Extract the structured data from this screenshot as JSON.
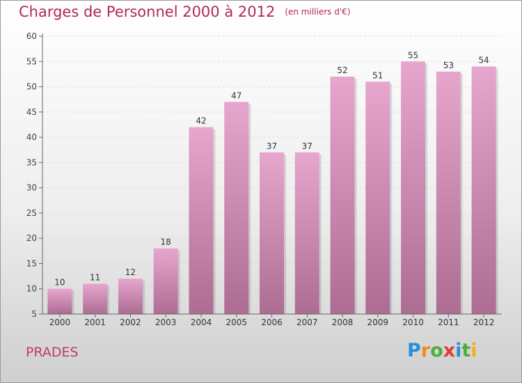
{
  "title": "Charges de Personnel 2000 à 2012",
  "unit": "(en milliers d'€)",
  "commune": "PRADES",
  "logo": {
    "letters": [
      "P",
      "r",
      "o",
      "x",
      "i",
      "t",
      "i"
    ],
    "colors": [
      "#2a8fd8",
      "#f08a1c",
      "#4cae3c",
      "#e53b32",
      "#2a8fd8",
      "#4cae3c",
      "#f0b21c"
    ]
  },
  "colors": {
    "title": "#b0285a",
    "bar_top": "#e6a6cd",
    "bar_bottom": "#ad6d93",
    "axis": "#666666",
    "grid": "#dddddd"
  },
  "chart_data": {
    "type": "bar",
    "title": "Charges de Personnel 2000 à 2012",
    "xlabel": "",
    "ylabel": "",
    "categories": [
      "2000",
      "2001",
      "2002",
      "2003",
      "2004",
      "2005",
      "2006",
      "2007",
      "2008",
      "2009",
      "2010",
      "2011",
      "2012"
    ],
    "values": [
      10,
      11,
      12,
      18,
      42,
      47,
      37,
      37,
      52,
      51,
      55,
      53,
      54
    ],
    "ylim": [
      5,
      60
    ],
    "yticks": [
      5,
      10,
      15,
      20,
      25,
      30,
      35,
      40,
      45,
      50,
      55,
      60
    ],
    "grid": "horizontal dashed",
    "legend": "none"
  }
}
